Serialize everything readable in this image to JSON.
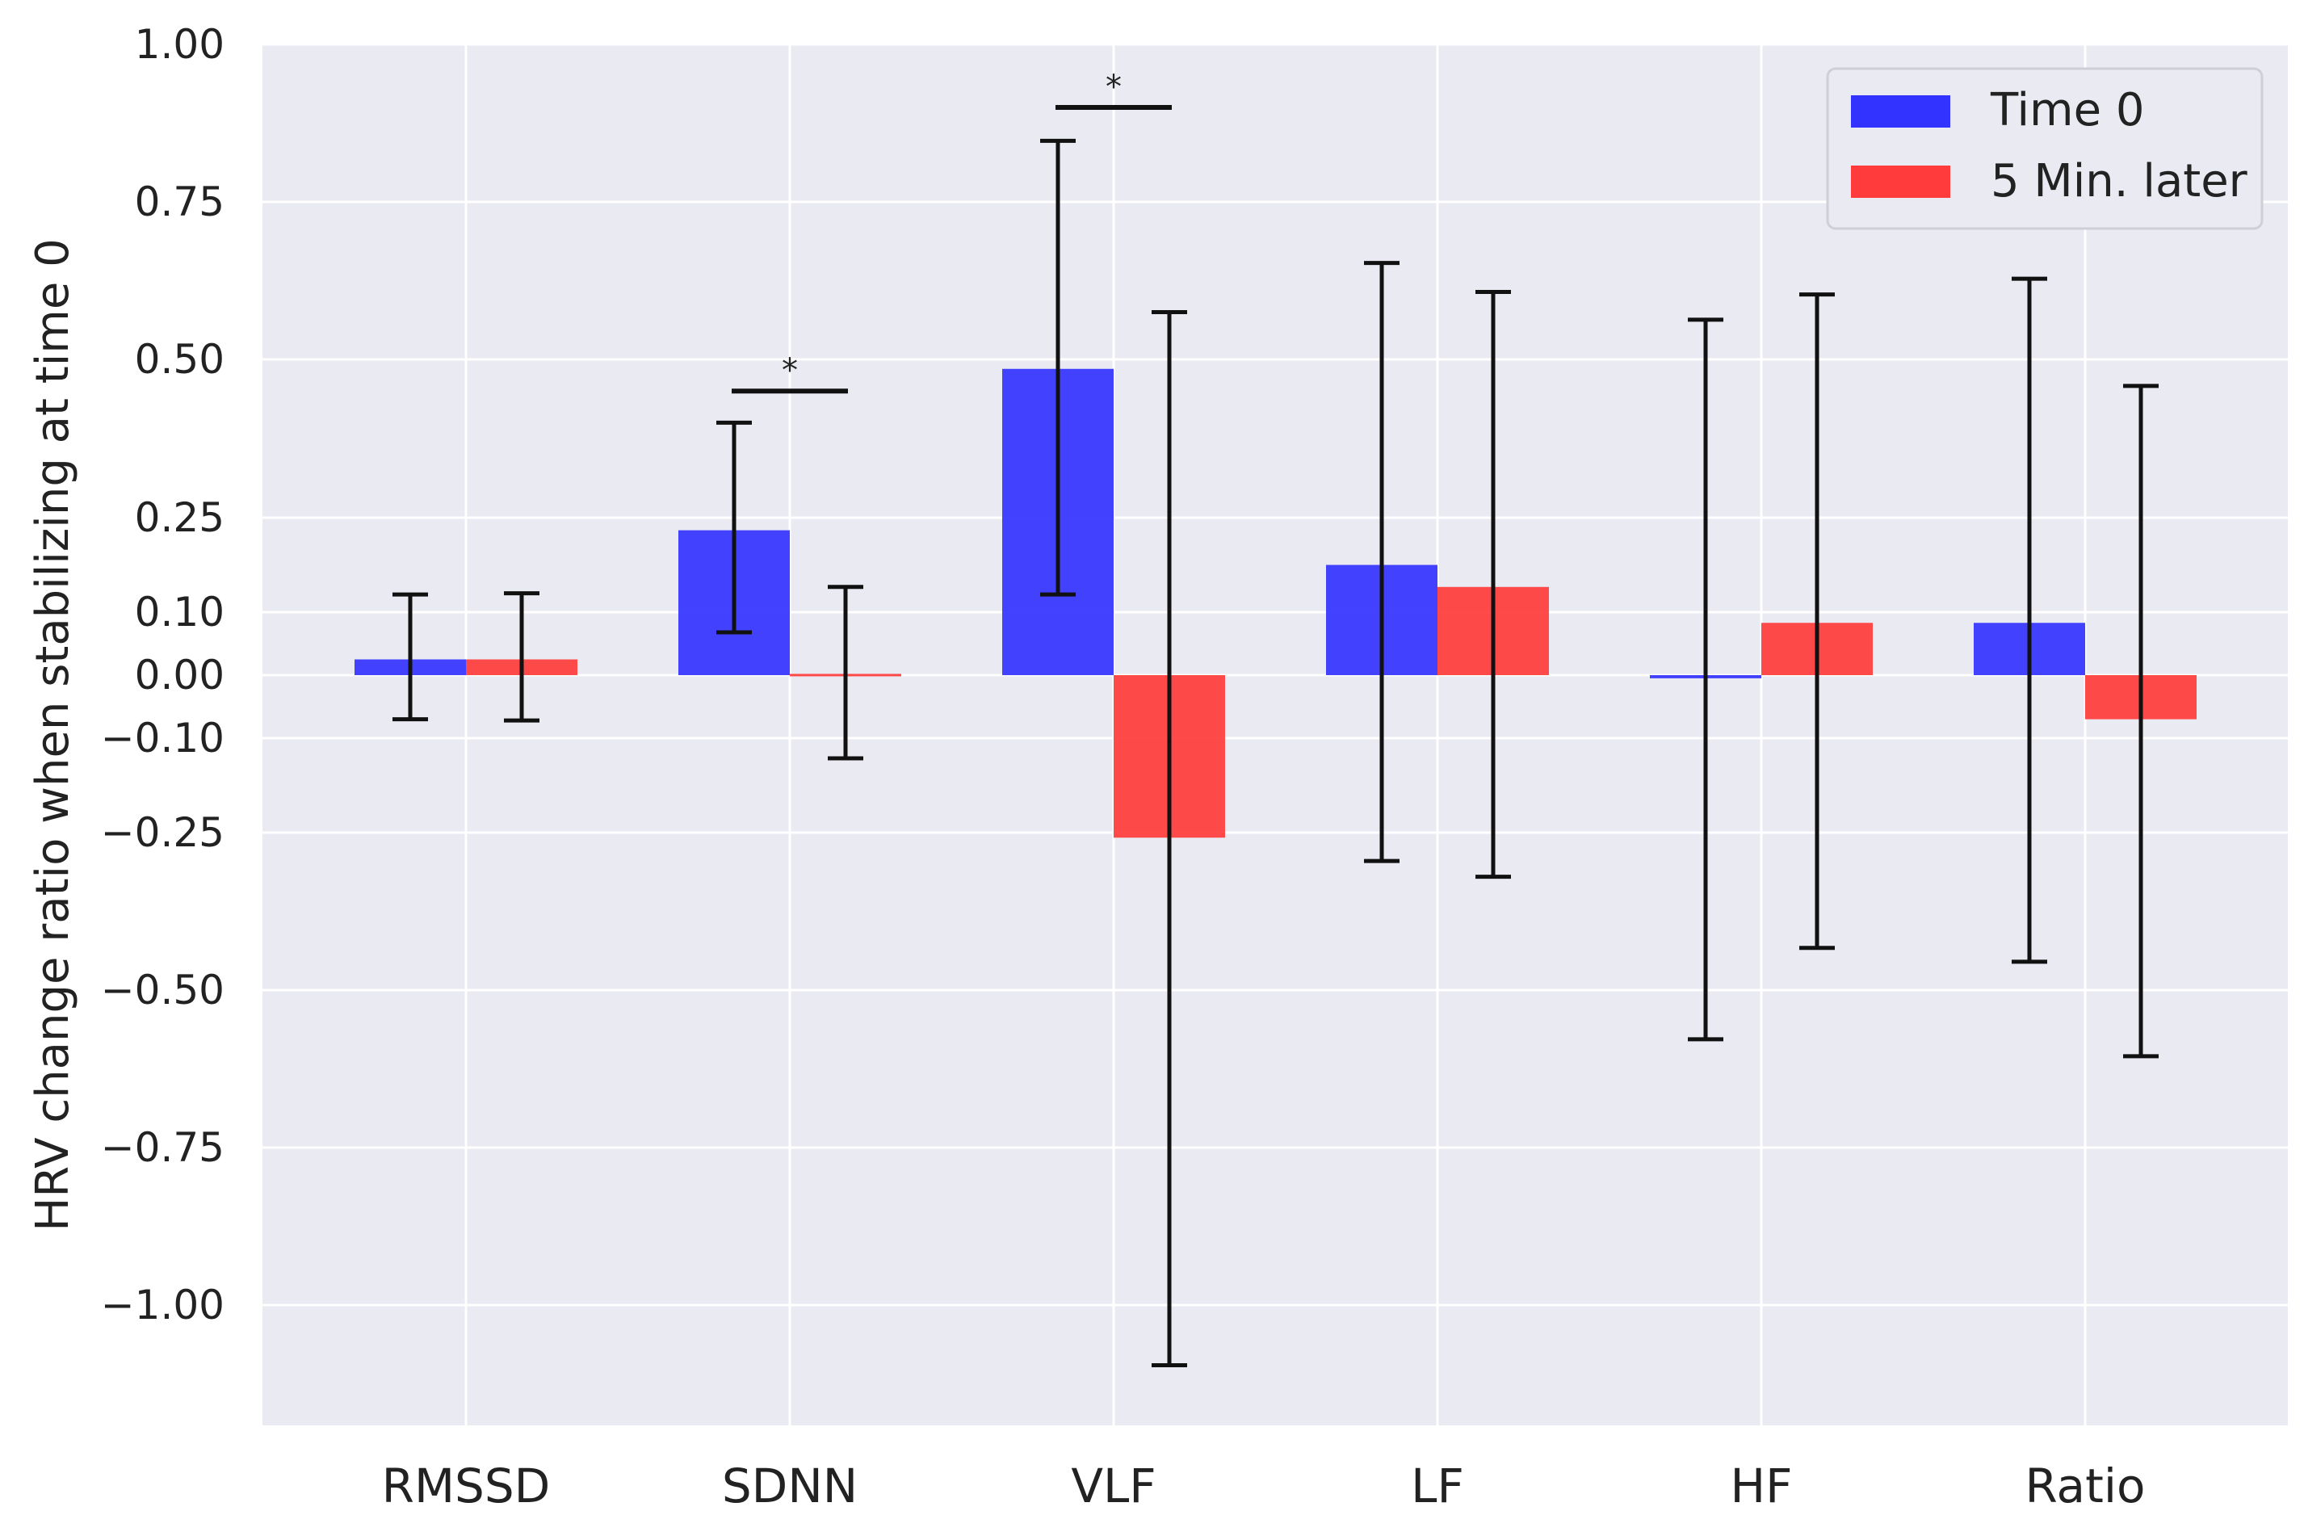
{
  "chart_data": {
    "type": "bar",
    "title": "",
    "xlabel": "",
    "ylabel": "HRV change ratio when stabilizing at time 0",
    "categories": [
      "RMSSD",
      "SDNN",
      "VLF",
      "LF",
      "HF",
      "Ratio"
    ],
    "series": [
      {
        "name": "Time 0",
        "color": "#3333ff",
        "values": [
          0.025,
          0.23,
          0.485,
          0.175,
          -0.005,
          0.083
        ],
        "err_low": [
          -0.07,
          0.068,
          0.128,
          -0.295,
          -0.578,
          -0.455
        ],
        "err_high": [
          0.128,
          0.4,
          0.847,
          0.653,
          0.563,
          0.628
        ]
      },
      {
        "name": "5 Min. later",
        "color": "#ff3b3b",
        "values": [
          0.025,
          0.002,
          -0.258,
          0.14,
          0.083,
          -0.07
        ],
        "err_low": [
          -0.072,
          -0.132,
          -1.095,
          -0.32,
          -0.433,
          -0.605
        ],
        "err_high": [
          0.13,
          0.14,
          0.575,
          0.607,
          0.603,
          0.458
        ]
      }
    ],
    "yticks": [
      1.0,
      0.75,
      0.5,
      0.25,
      0.1,
      0.0,
      -0.1,
      -0.25,
      -0.5,
      -0.75,
      -1.0
    ],
    "ytick_labels": [
      "1.00",
      "0.75",
      "0.50",
      "0.25",
      "0.10",
      "0.00",
      "−0.10",
      "−0.25",
      "−0.50",
      "−0.75",
      "−1.00"
    ],
    "ylim": [
      -1.19,
      1.0
    ],
    "grid": true,
    "legend": {
      "position": "top-right"
    },
    "significance": [
      {
        "category_index": 1,
        "level": 0.45,
        "label": "*"
      },
      {
        "category_index": 2,
        "level": 0.9,
        "label": "*"
      }
    ],
    "colors": {
      "background": "#eaeaf2",
      "grid": "#ffffff",
      "errorbar": "#111111"
    }
  }
}
